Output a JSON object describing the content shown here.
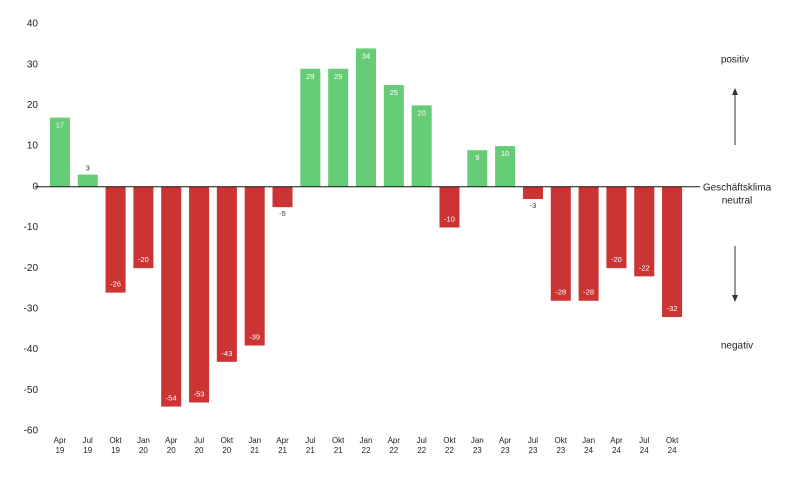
{
  "chart_data": {
    "type": "bar",
    "categories": [
      [
        "Apr",
        "19"
      ],
      [
        "Jul",
        "19"
      ],
      [
        "Okt",
        "19"
      ],
      [
        "Jan",
        "20"
      ],
      [
        "Apr",
        "20"
      ],
      [
        "Jul",
        "20"
      ],
      [
        "Okt",
        "20"
      ],
      [
        "Jan",
        "21"
      ],
      [
        "Apr",
        "21"
      ],
      [
        "Jul",
        "21"
      ],
      [
        "Okt",
        "21"
      ],
      [
        "Jan",
        "22"
      ],
      [
        "Apr",
        "22"
      ],
      [
        "Jul",
        "22"
      ],
      [
        "Okt",
        "22"
      ],
      [
        "Jan",
        "23"
      ],
      [
        "Apr",
        "23"
      ],
      [
        "Jul",
        "23"
      ],
      [
        "Okt",
        "23"
      ],
      [
        "Jan",
        "24"
      ],
      [
        "Apr",
        "24"
      ],
      [
        "Jul",
        "24"
      ],
      [
        "Okt",
        "24"
      ]
    ],
    "values": [
      17,
      3,
      -26,
      -20,
      -54,
      -53,
      -43,
      -39,
      -5,
      29,
      29,
      34,
      25,
      20,
      -10,
      9,
      10,
      -3,
      -28,
      -28,
      -20,
      -22,
      -32
    ],
    "positive_color": "#66cc77",
    "negative_color": "#cc3333",
    "ylim": [
      -60,
      40
    ],
    "yticks": [
      -60,
      -50,
      -40,
      -30,
      -20,
      -10,
      0,
      10,
      20,
      30,
      40
    ],
    "annotations": {
      "positive": "positiv",
      "neutral": [
        "Geschäftsklima",
        "neutral"
      ],
      "negative": "negativ"
    }
  }
}
